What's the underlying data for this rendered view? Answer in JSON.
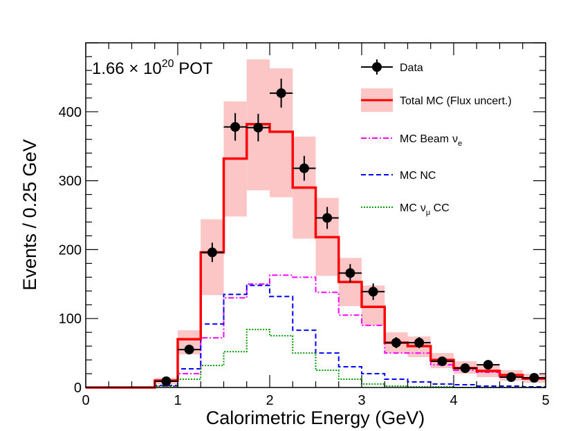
{
  "chart_data": {
    "type": "histogram",
    "xlabel": "Calorimetric Energy (GeV)",
    "ylabel": "Events / 0.25 GeV",
    "xlim": [
      0,
      5
    ],
    "ylim": [
      0,
      500
    ],
    "x_ticks": [
      "0",
      "1",
      "2",
      "3",
      "4",
      "5"
    ],
    "y_ticks": [
      "0",
      "100",
      "200",
      "300",
      "400"
    ],
    "annotation": {
      "prefix": "1.66 × 10",
      "exponent": "20",
      "suffix": " POT"
    },
    "bin_edges": [
      0,
      0.25,
      0.5,
      0.75,
      1.0,
      1.25,
      1.5,
      1.75,
      2.0,
      2.25,
      2.5,
      2.75,
      3.0,
      3.25,
      3.5,
      3.75,
      4.0,
      4.25,
      4.5,
      4.75,
      5.0
    ],
    "series": [
      {
        "name": "MC Beam",
        "legend_symbol": "ν",
        "legend_sub": "e",
        "color": "#ff00ff",
        "dash": "8,3,2,3",
        "values": [
          0,
          0,
          0,
          2,
          20,
          72,
          130,
          150,
          163,
          160,
          138,
          105,
          90,
          50,
          50,
          33,
          25,
          22,
          15,
          12
        ]
      },
      {
        "name": "MC NC",
        "color": "#0000ff",
        "dash": "7,4",
        "values": [
          0,
          0,
          0,
          3,
          27,
          92,
          135,
          148,
          132,
          83,
          50,
          30,
          20,
          12,
          8,
          5,
          4,
          2,
          2,
          1
        ]
      },
      {
        "name": "MC",
        "legend_symbol": "ν",
        "legend_sub": "μ",
        "name_suffix": " CC",
        "color": "#009900",
        "dash": "2,2",
        "values": [
          0,
          0,
          0,
          2,
          12,
          32,
          52,
          84,
          75,
          50,
          25,
          12,
          5,
          2,
          1,
          1,
          0,
          0,
          0,
          0
        ]
      }
    ],
    "total_mc": {
      "name": "Total MC (Flux uncert.)",
      "color": "#ff0000",
      "band_color": "#fcc6c6",
      "values": [
        0,
        0,
        0,
        10,
        70,
        196,
        332,
        382,
        371,
        290,
        218,
        153,
        117,
        65,
        60,
        40,
        28,
        24,
        18,
        13
      ],
      "band_low": [
        0,
        0,
        0,
        5,
        48,
        134,
        248,
        286,
        276,
        216,
        162,
        118,
        90,
        50,
        44,
        28,
        20,
        15,
        10,
        7
      ],
      "band_high": [
        0,
        0,
        0,
        14,
        83,
        244,
        415,
        476,
        463,
        364,
        275,
        188,
        148,
        80,
        74,
        50,
        38,
        32,
        25,
        20
      ]
    },
    "data": {
      "name": "Data",
      "color": "#000000",
      "x": [
        0.875,
        1.125,
        1.375,
        1.625,
        1.875,
        2.125,
        2.375,
        2.625,
        2.875,
        3.125,
        3.375,
        3.625,
        3.875,
        4.125,
        4.375,
        4.625,
        4.875
      ],
      "y": [
        9,
        55,
        196,
        378,
        377,
        427,
        318,
        246,
        166,
        139,
        65,
        65,
        38,
        28,
        33,
        15,
        14
      ],
      "yerr": [
        3,
        7,
        14,
        20,
        20,
        21,
        18,
        16,
        13,
        12,
        8,
        8,
        6,
        5,
        6,
        4,
        4
      ]
    }
  }
}
